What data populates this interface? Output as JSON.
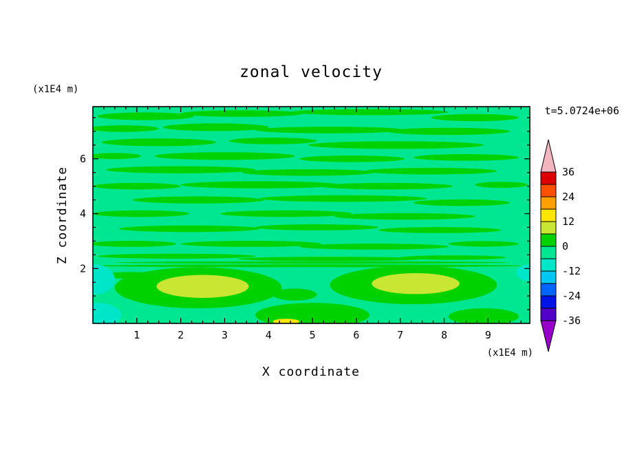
{
  "page": {
    "background_color": "#ffffff"
  },
  "chart_data": {
    "type": "heatmap",
    "title": "zonal velocity",
    "timestamp": "t=5.0724e+06",
    "xlabel": "X coordinate",
    "ylabel": "Z coordinate",
    "x_unit_label": "(x1E4 m)",
    "y_unit_label": "(x1E4 m)",
    "x_range": [
      0,
      9.95
    ],
    "z_range": [
      0,
      7.9
    ],
    "x_ticks": [
      1,
      2,
      3,
      4,
      5,
      6,
      7,
      8,
      9
    ],
    "x_minor_step": 0.25,
    "z_ticks": [
      2,
      4,
      6
    ],
    "z_minor_step": 0.5,
    "grid": false,
    "legend_position": "right-colorbar",
    "colorbar": {
      "over_color": "#F2B6C0",
      "under_color": "#9600C8",
      "level_boundaries": [
        36,
        30,
        24,
        18,
        12,
        6,
        0,
        -6,
        -12,
        -18,
        -24,
        -30,
        -36
      ],
      "labels": [
        "36",
        "24",
        "12",
        "0",
        "-12",
        "-24",
        "-36"
      ],
      "label_values": [
        36,
        24,
        12,
        0,
        -12,
        -24,
        -36
      ],
      "colors_top_to_bottom": [
        "#DC0000",
        "#FF5000",
        "#FFA000",
        "#FFE600",
        "#C8E632",
        "#00D200",
        "#00E691",
        "#00E6C8",
        "#00C8F0",
        "#0064FF",
        "#0014E6",
        "#5000C8"
      ]
    },
    "field": {
      "background_band": "-6..0",
      "background_color": "#00E691",
      "feature_format": [
        "x_center",
        "z_center",
        "x_radius",
        "z_radius",
        "color"
      ],
      "features": [
        [
          1.2,
          7.55,
          1.1,
          0.14,
          "#00D200"
        ],
        [
          3.4,
          7.65,
          1.4,
          0.12,
          "#00D200"
        ],
        [
          6.3,
          7.7,
          1.8,
          0.11,
          "#00D200"
        ],
        [
          8.7,
          7.5,
          1.0,
          0.13,
          "#00D200"
        ],
        [
          0.7,
          7.1,
          0.8,
          0.12,
          "#00D200"
        ],
        [
          2.8,
          7.15,
          1.2,
          0.14,
          "#00D200"
        ],
        [
          5.4,
          7.05,
          1.7,
          0.12,
          "#00D200"
        ],
        [
          8.1,
          7.0,
          1.4,
          0.13,
          "#00D200"
        ],
        [
          1.5,
          6.6,
          1.3,
          0.14,
          "#00D200"
        ],
        [
          4.1,
          6.65,
          1.0,
          0.12,
          "#00D200"
        ],
        [
          6.9,
          6.5,
          2.0,
          0.14,
          "#00D200"
        ],
        [
          0.5,
          6.1,
          0.6,
          0.11,
          "#00D200"
        ],
        [
          3.0,
          6.1,
          1.6,
          0.14,
          "#00D200"
        ],
        [
          5.9,
          6.0,
          1.2,
          0.12,
          "#00D200"
        ],
        [
          8.5,
          6.05,
          1.2,
          0.12,
          "#00D200"
        ],
        [
          2.0,
          5.6,
          1.7,
          0.13,
          "#00D200"
        ],
        [
          4.9,
          5.5,
          1.5,
          0.12,
          "#00D200"
        ],
        [
          7.7,
          5.55,
          1.5,
          0.12,
          "#00D200"
        ],
        [
          1.0,
          5.0,
          1.0,
          0.12,
          "#00D200"
        ],
        [
          3.8,
          5.05,
          1.8,
          0.13,
          "#00D200"
        ],
        [
          6.7,
          5.0,
          1.5,
          0.12,
          "#00D200"
        ],
        [
          9.3,
          5.05,
          0.6,
          0.11,
          "#00D200"
        ],
        [
          2.4,
          4.5,
          1.5,
          0.13,
          "#00D200"
        ],
        [
          5.7,
          4.55,
          1.9,
          0.12,
          "#00D200"
        ],
        [
          8.4,
          4.4,
          1.1,
          0.12,
          "#00D200"
        ],
        [
          1.1,
          4.0,
          1.1,
          0.12,
          "#00D200"
        ],
        [
          4.4,
          4.0,
          1.5,
          0.12,
          "#00D200"
        ],
        [
          7.1,
          3.9,
          1.6,
          0.12,
          "#00D200"
        ],
        [
          2.2,
          3.45,
          1.6,
          0.12,
          "#00D200"
        ],
        [
          5.1,
          3.5,
          1.4,
          0.11,
          "#00D200"
        ],
        [
          7.9,
          3.4,
          1.4,
          0.11,
          "#00D200"
        ],
        [
          0.9,
          2.9,
          1.0,
          0.11,
          "#00D200"
        ],
        [
          3.6,
          2.9,
          1.6,
          0.11,
          "#00D200"
        ],
        [
          6.4,
          2.8,
          1.7,
          0.11,
          "#00D200"
        ],
        [
          8.9,
          2.9,
          0.8,
          0.1,
          "#00D200"
        ],
        [
          1.9,
          2.45,
          1.8,
          0.09,
          "#00D200"
        ],
        [
          5.4,
          2.35,
          2.1,
          0.08,
          "#00D200"
        ],
        [
          8.2,
          2.4,
          1.2,
          0.08,
          "#00D200"
        ],
        [
          4.9,
          2.1,
          4.9,
          0.05,
          "#00D200"
        ],
        [
          5.0,
          2.22,
          4.5,
          0.04,
          "#00D200"
        ],
        [
          0.9,
          1.75,
          0.9,
          0.12,
          "#00D200"
        ],
        [
          2.4,
          1.3,
          1.9,
          0.75,
          "#00D200"
        ],
        [
          7.3,
          1.4,
          1.9,
          0.7,
          "#00D200"
        ],
        [
          5.0,
          0.3,
          1.3,
          0.45,
          "#00D200"
        ],
        [
          8.9,
          0.25,
          0.8,
          0.3,
          "#00D200"
        ],
        [
          4.6,
          1.05,
          0.5,
          0.22,
          "#00D200"
        ],
        [
          2.5,
          1.35,
          1.05,
          0.42,
          "#C8E632"
        ],
        [
          7.35,
          1.45,
          1.0,
          0.38,
          "#C8E632"
        ],
        [
          4.4,
          0.07,
          0.3,
          0.1,
          "#FFE600"
        ],
        [
          0.05,
          1.6,
          0.45,
          0.55,
          "#00E6C8"
        ],
        [
          0.1,
          0.3,
          0.55,
          0.45,
          "#00E6C8"
        ],
        [
          9.9,
          1.85,
          0.25,
          0.3,
          "#00E6C8"
        ]
      ]
    }
  }
}
